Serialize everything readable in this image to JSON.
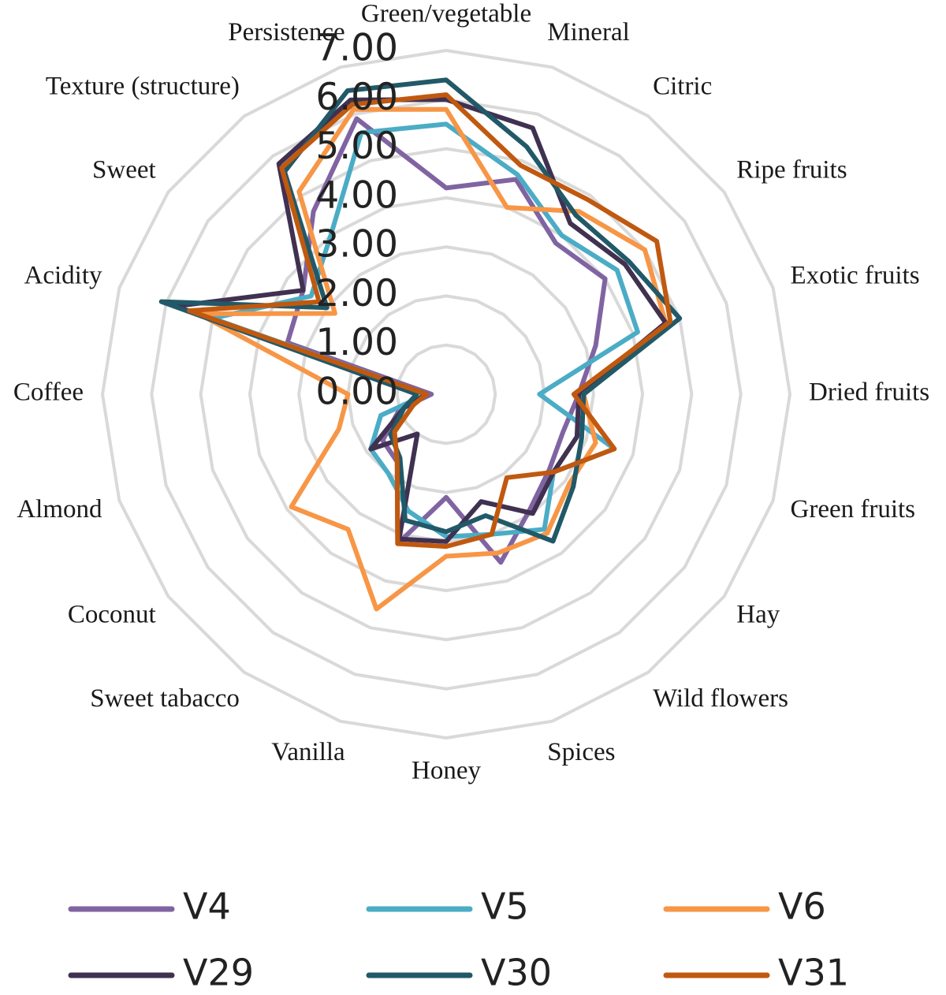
{
  "chart_data": {
    "type": "radar",
    "categories": [
      "Green/vegetable",
      "Mineral",
      "Citric",
      "Ripe fruits",
      "Exotic fruits",
      "Dried fruits",
      "Green fruits",
      "Hay",
      "Wild flowers",
      "Spices",
      "Honey",
      "Vanilla",
      "Sweet tabacco",
      "Coconut",
      "Almond",
      "Coffee",
      "Acidity",
      "Sweet",
      "Texture (structure)",
      "Persistence"
    ],
    "tick_labels": [
      "0.00",
      "1.00",
      "2.00",
      "3.00",
      "4.00",
      "5.00",
      "6.00",
      "7.00"
    ],
    "rlim": [
      0,
      7
    ],
    "grid": true,
    "legend_position": "bottom",
    "series": [
      {
        "name": "V4",
        "color": "#8064a2",
        "values": [
          4.2,
          4.6,
          3.8,
          4.0,
          3.2,
          2.7,
          2.5,
          2.6,
          2.9,
          3.6,
          2.1,
          3.2,
          1.7,
          1.6,
          1.0,
          0.3,
          3.4,
          3.6,
          4.6,
          5.9
        ]
      },
      {
        "name": "V5",
        "color": "#4bacc6",
        "values": [
          5.5,
          4.7,
          4.0,
          4.3,
          4.1,
          1.9,
          3.6,
          2.7,
          3.4,
          3.0,
          2.9,
          2.5,
          2.0,
          1.9,
          1.4,
          0.4,
          5.0,
          3.4,
          4.0,
          5.6
        ]
      },
      {
        "name": "V6",
        "color": "#f79646",
        "values": [
          5.8,
          4.0,
          4.6,
          5.0,
          4.7,
          2.8,
          3.2,
          3.1,
          3.5,
          3.4,
          3.3,
          4.6,
          3.4,
          3.9,
          2.3,
          2.0,
          5.3,
          2.8,
          5.1,
          6.1
        ]
      },
      {
        "name": "V29",
        "color": "#403151",
        "values": [
          6.0,
          5.7,
          4.3,
          4.5,
          4.7,
          2.7,
          2.8,
          2.7,
          3.0,
          2.3,
          3.0,
          3.1,
          1.0,
          1.9,
          0.9,
          0.4,
          5.8,
          3.6,
          5.8,
          6.3
        ]
      },
      {
        "name": "V30",
        "color": "#215968",
        "values": [
          6.4,
          5.3,
          4.5,
          4.6,
          5.0,
          2.8,
          2.9,
          3.2,
          3.7,
          2.6,
          2.8,
          2.7,
          1.6,
          1.4,
          0.9,
          0.6,
          6.1,
          3.0,
          5.6,
          6.5
        ]
      },
      {
        "name": "V31",
        "color": "#c0590f",
        "values": [
          6.1,
          4.9,
          4.9,
          5.3,
          4.8,
          2.6,
          3.6,
          2.7,
          2.1,
          3.0,
          3.1,
          3.2,
          1.7,
          1.3,
          0.7,
          0.4,
          5.5,
          3.2,
          5.7,
          6.2
        ]
      }
    ]
  }
}
